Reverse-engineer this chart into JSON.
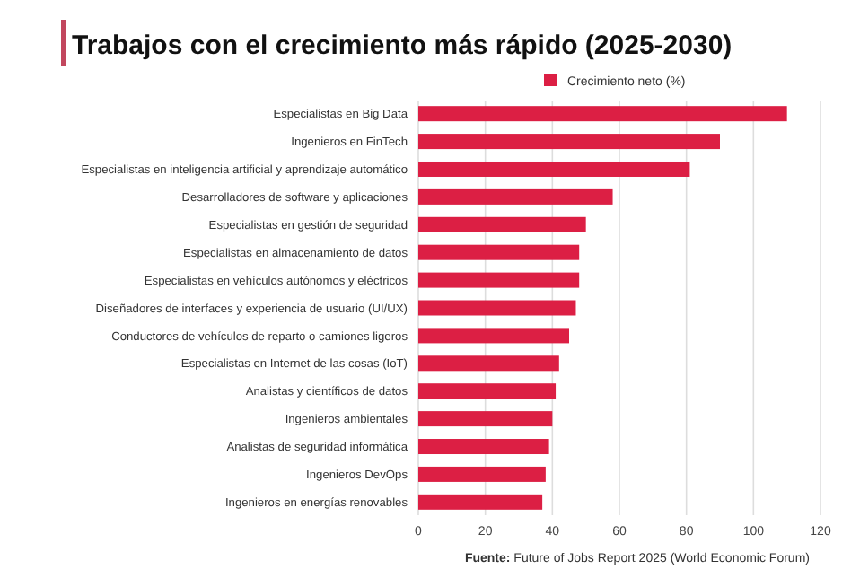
{
  "chart_data": {
    "type": "bar",
    "orientation": "horizontal",
    "title": "Trabajos con el crecimiento más rápido (2025-2030)",
    "categories": [
      "Especialistas en Big Data",
      "Ingenieros en FinTech",
      "Especialistas en inteligencia artificial y aprendizaje automático",
      "Desarrolladores de software y aplicaciones",
      "Especialistas en gestión de seguridad",
      "Especialistas en almacenamiento de datos",
      "Especialistas en vehículos autónomos y eléctricos",
      "Diseñadores de interfaces y experiencia de usuario (UI/UX)",
      "Conductores de vehículos de reparto o camiones ligeros",
      "Especialistas en Internet de las cosas (IoT)",
      "Analistas y científicos de datos",
      "Ingenieros ambientales",
      "Analistas de seguridad informática",
      "Ingenieros DevOps",
      "Ingenieros en energías renovables"
    ],
    "series": [
      {
        "name": "Crecimiento neto (%)",
        "color": "#dc1f44",
        "values": [
          110,
          90,
          81,
          58,
          50,
          48,
          48,
          47,
          45,
          42,
          41,
          40,
          39,
          38,
          37
        ]
      }
    ],
    "xlim": [
      0,
      120
    ],
    "xticks": [
      0,
      20,
      40,
      60,
      80,
      100,
      120
    ],
    "grid": "x",
    "legend": "top right",
    "annotations": [
      "Fuente: Future of Jobs Report 2025 (World Economic Forum)"
    ]
  }
}
